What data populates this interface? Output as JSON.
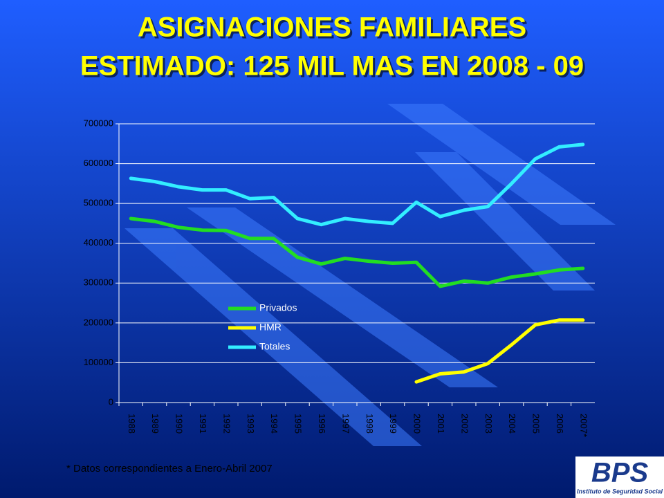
{
  "chart_data": {
    "type": "line",
    "title": "ASIGNACIONES FAMILIARES",
    "subtitle": "ESTIMADO: 125 MIL MAS EN 2008 - 09",
    "categories": [
      "1988",
      "1989",
      "1990",
      "1991",
      "1992",
      "1993",
      "1994",
      "1995",
      "1996",
      "1997",
      "1998",
      "1999",
      "2000",
      "2001",
      "2002",
      "2003",
      "2004",
      "2005",
      "2006",
      "2007*"
    ],
    "series": [
      {
        "name": "Privados",
        "color": "#22dd22",
        "values": [
          462000,
          455000,
          440000,
          433000,
          432000,
          412000,
          412000,
          365000,
          348000,
          362000,
          355000,
          350000,
          352000,
          292000,
          305000,
          300000,
          315000,
          323000,
          333000,
          337000
        ]
      },
      {
        "name": "HMR",
        "color": "#ffff00",
        "values": [
          null,
          null,
          null,
          null,
          null,
          null,
          null,
          null,
          null,
          null,
          null,
          null,
          52000,
          72000,
          77000,
          98000,
          145000,
          195000,
          207000,
          207000
        ]
      },
      {
        "name": "Totales",
        "color": "#33eeff",
        "values": [
          563000,
          555000,
          542000,
          534000,
          534000,
          512000,
          515000,
          462000,
          447000,
          462000,
          455000,
          450000,
          503000,
          467000,
          483000,
          492000,
          550000,
          612000,
          642000,
          648000
        ]
      }
    ],
    "ylim": [
      0,
      700000
    ],
    "yticks": [
      0,
      100000,
      200000,
      300000,
      400000,
      500000,
      600000,
      700000
    ],
    "grid": true,
    "legend": "center"
  },
  "note": "* Datos correspondientes a Enero-Abril 2007",
  "logo": {
    "text": "BPS",
    "caption": "Instituto de Seguridad Social"
  }
}
